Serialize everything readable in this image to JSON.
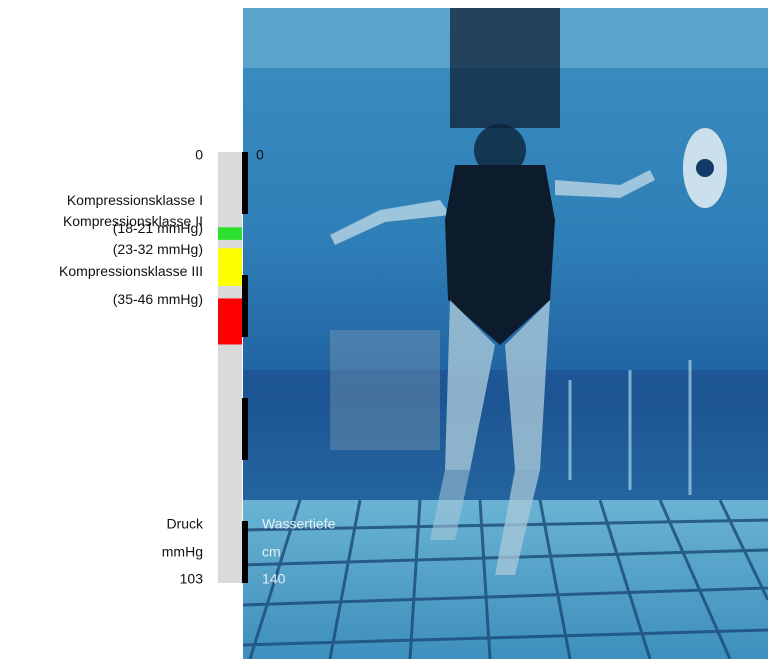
{
  "left_scale": {
    "top": 0,
    "bottom": 103,
    "title": "Druck",
    "unit": "mmHg"
  },
  "right_scale": {
    "top": 0,
    "bottom": 140,
    "title": "Wassertiefe",
    "unit": "cm"
  },
  "classes": [
    {
      "name": "Kompressionsklasse I",
      "range": "(18-21 mmHg)",
      "low": 18,
      "high": 21,
      "color": "#2ee02e"
    },
    {
      "name": "Kompressionsklasse II",
      "range": "(23-32 mmHg)",
      "low": 23,
      "high": 32,
      "color": "#ffff00"
    },
    {
      "name": "Kompressionsklasse III",
      "range": "(35-46 mmHg)",
      "low": 35,
      "high": 46,
      "color": "#ff0000"
    }
  ]
}
